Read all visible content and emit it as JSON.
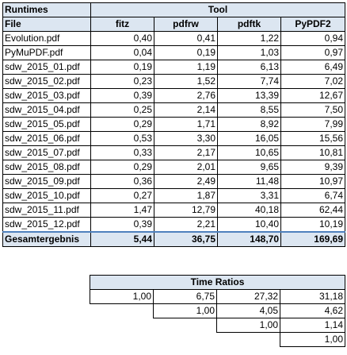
{
  "runtimes": {
    "title": "Runtimes",
    "group_header": "Tool",
    "file_header": "File",
    "tools": [
      "fitz",
      "pdfrw",
      "pdftk",
      "PyPDF2"
    ],
    "rows": [
      {
        "file": "Evolution.pdf",
        "values": [
          "0,40",
          "0,41",
          "1,22",
          "0,94"
        ]
      },
      {
        "file": "PyMuPDF.pdf",
        "values": [
          "0,04",
          "0,19",
          "1,03",
          "0,97"
        ]
      },
      {
        "file": "sdw_2015_01.pdf",
        "values": [
          "0,19",
          "1,19",
          "6,13",
          "6,49"
        ]
      },
      {
        "file": "sdw_2015_02.pdf",
        "values": [
          "0,23",
          "1,52",
          "7,74",
          "7,02"
        ]
      },
      {
        "file": "sdw_2015_03.pdf",
        "values": [
          "0,39",
          "2,76",
          "13,39",
          "12,67"
        ]
      },
      {
        "file": "sdw_2015_04.pdf",
        "values": [
          "0,25",
          "2,14",
          "8,55",
          "7,50"
        ]
      },
      {
        "file": "sdw_2015_05.pdf",
        "values": [
          "0,29",
          "1,71",
          "8,92",
          "7,99"
        ]
      },
      {
        "file": "sdw_2015_06.pdf",
        "values": [
          "0,53",
          "3,30",
          "16,05",
          "15,56"
        ]
      },
      {
        "file": "sdw_2015_07.pdf",
        "values": [
          "0,33",
          "2,17",
          "10,65",
          "10,81"
        ]
      },
      {
        "file": "sdw_2015_08.pdf",
        "values": [
          "0,29",
          "2,01",
          "9,65",
          "9,39"
        ]
      },
      {
        "file": "sdw_2015_09.pdf",
        "values": [
          "0,36",
          "2,49",
          "11,48",
          "10,97"
        ]
      },
      {
        "file": "sdw_2015_10.pdf",
        "values": [
          "0,27",
          "1,87",
          "3,31",
          "6,74"
        ]
      },
      {
        "file": "sdw_2015_11.pdf",
        "values": [
          "1,47",
          "12,79",
          "40,18",
          "62,44"
        ]
      },
      {
        "file": "sdw_2015_12.pdf",
        "values": [
          "0,39",
          "2,21",
          "10,40",
          "10,19"
        ]
      }
    ],
    "total": {
      "label": "Gesamtergebnis",
      "values": [
        "5,44",
        "36,75",
        "148,70",
        "169,69"
      ]
    }
  },
  "ratios": {
    "title": "Time Ratios",
    "rows": [
      [
        "1,00",
        "6,75",
        "27,32",
        "31,18"
      ],
      [
        "",
        "1,00",
        "4,05",
        "4,62"
      ],
      [
        "",
        "",
        "1,00",
        "1,14"
      ],
      [
        "",
        "",
        "",
        "1,00"
      ]
    ]
  }
}
